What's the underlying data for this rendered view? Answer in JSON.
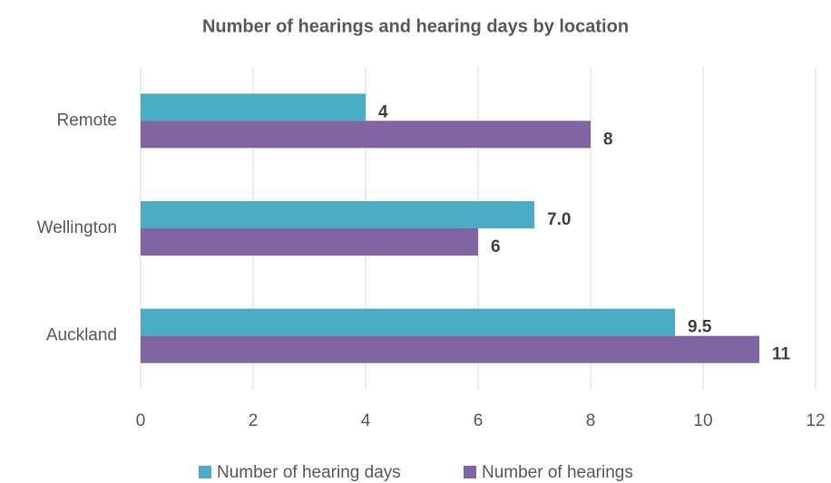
{
  "chart_data": {
    "type": "barh",
    "title": "Number of hearings and hearing days by location",
    "categories": [
      "Remote",
      "Wellington",
      "Auckland"
    ],
    "series": [
      {
        "name": "Number of hearing days",
        "color": "#4bacc6",
        "values": [
          4,
          7.0,
          9.5
        ],
        "value_labels": [
          "4",
          "7.0",
          "9.5"
        ]
      },
      {
        "name": "Number of hearings",
        "color": "#8064a2",
        "values": [
          8,
          6,
          11
        ],
        "value_labels": [
          "8",
          "6",
          "11"
        ]
      }
    ],
    "xlim": [
      0,
      12
    ],
    "xticks": [
      0,
      2,
      4,
      6,
      8,
      10,
      12
    ],
    "grid": true,
    "legend": "bottom"
  }
}
